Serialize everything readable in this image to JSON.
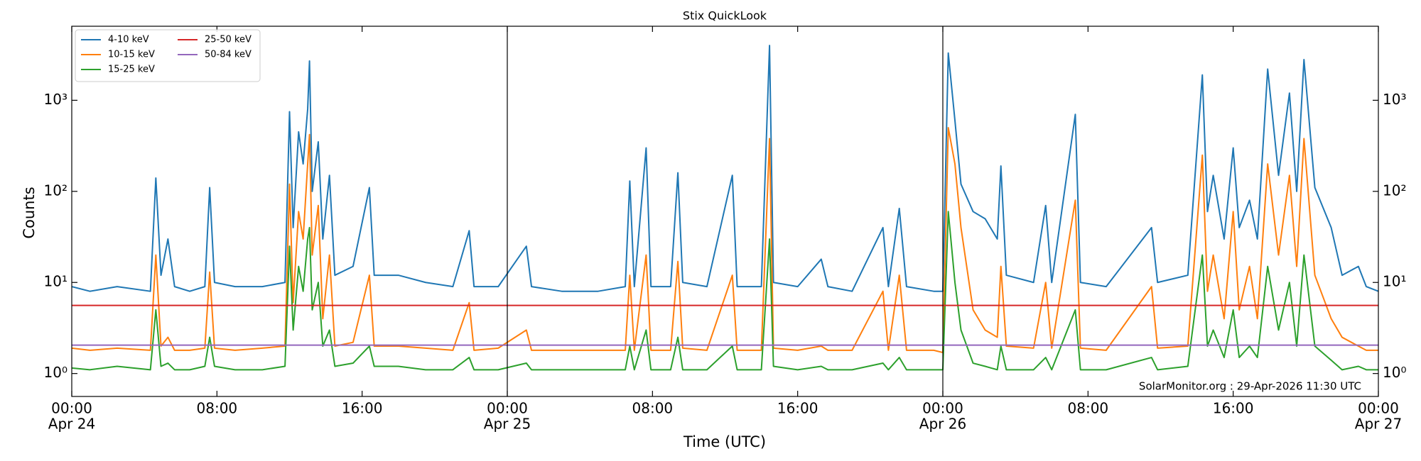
{
  "chart_data": {
    "type": "line",
    "title": "Stix QuickLook",
    "x_label": "Time (UTC)",
    "y_label": "Counts",
    "annotation": "SolarMonitor.org : 29-Apr-2026 11:30 UTC",
    "yscale": "log",
    "legend": "upper left",
    "xlim": [
      "Apr 24 00:00",
      "Apr 27 00:00"
    ],
    "xticks": [
      {
        "value": "Apr 24 00:00",
        "label": [
          "00:00",
          "Apr 24"
        ]
      },
      {
        "value": "Apr 24 08:00",
        "label": "08:00"
      },
      {
        "value": "Apr 24 16:00",
        "label": "16:00"
      },
      {
        "value": "Apr 25 00:00",
        "label": [
          "00:00",
          "Apr 25"
        ]
      },
      {
        "value": "Apr 25 08:00",
        "label": "08:00"
      },
      {
        "value": "Apr 25 16:00",
        "label": "16:00"
      },
      {
        "value": "Apr 26 00:00",
        "label": [
          "00:00",
          "Apr 26"
        ]
      },
      {
        "value": "Apr 26 08:00",
        "label": "08:00"
      },
      {
        "value": "Apr 26 16:00",
        "label": "16:00"
      },
      {
        "value": "Apr 27 00:00",
        "label": [
          "00:00",
          "Apr 27"
        ]
      }
    ],
    "ylim": [
      0.56,
      6500
    ],
    "yticks": [
      {
        "value": 1,
        "label": "10⁰"
      },
      {
        "value": 10,
        "label": "10¹"
      },
      {
        "value": 100,
        "label": "10²"
      },
      {
        "value": 1000,
        "label": "10³"
      }
    ],
    "x": [
      "Apr 24 00:00",
      "Apr 24 01:00",
      "Apr 24 02:30",
      "Apr 24 04:20",
      "Apr 24 04:38",
      "Apr 24 04:55",
      "Apr 24 05:18",
      "Apr 24 05:40",
      "Apr 24 06:30",
      "Apr 24 07:20",
      "Apr 24 07:36",
      "Apr 24 07:52",
      "Apr 24 09:00",
      "Apr 24 10:30",
      "Apr 24 11:45",
      "Apr 24 12:00",
      "Apr 24 12:12",
      "Apr 24 12:30",
      "Apr 24 12:45",
      "Apr 24 13:00",
      "Apr 24 13:06",
      "Apr 24 13:15",
      "Apr 24 13:35",
      "Apr 24 13:50",
      "Apr 24 14:12",
      "Apr 24 14:30",
      "Apr 24 15:30",
      "Apr 24 16:24",
      "Apr 24 16:40",
      "Apr 24 18:00",
      "Apr 24 19:30",
      "Apr 24 21:00",
      "Apr 24 21:54",
      "Apr 24 22:10",
      "Apr 24 23:30",
      "Apr 25 01:03",
      "Apr 25 01:20",
      "Apr 25 03:00",
      "Apr 25 05:00",
      "Apr 25 06:30",
      "Apr 25 06:45",
      "Apr 25 07:00",
      "Apr 25 07:39",
      "Apr 25 07:55",
      "Apr 25 09:00",
      "Apr 25 09:24",
      "Apr 25 09:40",
      "Apr 25 11:00",
      "Apr 25 12:24",
      "Apr 25 12:40",
      "Apr 25 14:00",
      "Apr 25 14:27",
      "Apr 25 14:40",
      "Apr 25 16:00",
      "Apr 25 17:18",
      "Apr 25 17:40",
      "Apr 25 19:00",
      "Apr 25 20:42",
      "Apr 25 21:00",
      "Apr 25 21:36",
      "Apr 25 22:00",
      "Apr 25 23:30",
      "Apr 26 00:00",
      "Apr 26 00:18",
      "Apr 26 00:40",
      "Apr 26 01:00",
      "Apr 26 01:40",
      "Apr 26 02:20",
      "Apr 26 03:00",
      "Apr 26 03:12",
      "Apr 26 03:30",
      "Apr 26 05:00",
      "Apr 26 05:40",
      "Apr 26 06:00",
      "Apr 26 07:18",
      "Apr 26 07:35",
      "Apr 26 09:00",
      "Apr 26 11:30",
      "Apr 26 11:50",
      "Apr 26 13:30",
      "Apr 26 14:18",
      "Apr 26 14:35",
      "Apr 26 14:54",
      "Apr 26 15:30",
      "Apr 26 16:00",
      "Apr 26 16:20",
      "Apr 26 16:54",
      "Apr 26 17:20",
      "Apr 26 17:54",
      "Apr 26 18:30",
      "Apr 26 19:06",
      "Apr 26 19:30",
      "Apr 26 19:54",
      "Apr 26 20:30",
      "Apr 26 21:24",
      "Apr 26 22:00",
      "Apr 26 22:54",
      "Apr 26 23:20",
      "Apr 27 00:00"
    ],
    "series": [
      {
        "name": "4-10 keV",
        "color": "#1f77b4",
        "values": [
          9,
          8,
          9,
          8,
          140,
          12,
          30,
          9,
          8,
          9,
          110,
          10,
          9,
          9,
          10,
          750,
          40,
          450,
          200,
          800,
          2700,
          100,
          350,
          30,
          150,
          12,
          15,
          110,
          12,
          12,
          10,
          9,
          37,
          9,
          9,
          25,
          9,
          8,
          8,
          9,
          130,
          9,
          300,
          9,
          9,
          160,
          10,
          9,
          150,
          9,
          9,
          4000,
          10,
          9,
          18,
          9,
          8,
          40,
          9,
          65,
          9,
          8,
          8,
          3300,
          600,
          120,
          60,
          50,
          30,
          190,
          12,
          10,
          70,
          10,
          700,
          10,
          9,
          40,
          10,
          12,
          1900,
          60,
          150,
          30,
          300,
          40,
          80,
          30,
          2200,
          150,
          1200,
          100,
          2800,
          110,
          40,
          12,
          15,
          9,
          8
        ]
      },
      {
        "name": "10-15 keV",
        "color": "#ff7f0e",
        "values": [
          1.9,
          1.8,
          1.9,
          1.8,
          20,
          2,
          2.5,
          1.8,
          1.8,
          1.9,
          13,
          1.9,
          1.8,
          1.9,
          2,
          120,
          6,
          60,
          30,
          200,
          420,
          20,
          70,
          4,
          20,
          2,
          2.2,
          12,
          2,
          2,
          1.9,
          1.8,
          6,
          1.8,
          1.9,
          3,
          1.8,
          1.8,
          1.8,
          1.8,
          12,
          1.8,
          20,
          1.8,
          1.8,
          17,
          1.9,
          1.8,
          12,
          1.8,
          1.8,
          380,
          1.9,
          1.8,
          2,
          1.8,
          1.8,
          8,
          1.8,
          12,
          1.8,
          1.8,
          1.7,
          500,
          200,
          40,
          5,
          3,
          2.5,
          15,
          2,
          1.9,
          10,
          1.9,
          80,
          1.9,
          1.8,
          9,
          1.9,
          2,
          250,
          8,
          20,
          4,
          60,
          5,
          15,
          4,
          200,
          20,
          150,
          15,
          380,
          12,
          4,
          2.5,
          2,
          1.8,
          1.8
        ]
      },
      {
        "name": "15-25 keV",
        "color": "#2ca02c",
        "values": [
          1.15,
          1.1,
          1.2,
          1.1,
          5,
          1.2,
          1.3,
          1.1,
          1.1,
          1.2,
          2.5,
          1.2,
          1.1,
          1.1,
          1.2,
          25,
          3,
          15,
          8,
          30,
          40,
          5,
          10,
          2,
          3,
          1.2,
          1.3,
          2,
          1.2,
          1.2,
          1.1,
          1.1,
          1.5,
          1.1,
          1.1,
          1.3,
          1.1,
          1.1,
          1.1,
          1.1,
          2,
          1.1,
          3,
          1.1,
          1.1,
          2.5,
          1.1,
          1.1,
          2,
          1.1,
          1.1,
          30,
          1.2,
          1.1,
          1.2,
          1.1,
          1.1,
          1.3,
          1.1,
          1.5,
          1.1,
          1.1,
          1.1,
          60,
          10,
          3,
          1.3,
          1.2,
          1.1,
          2,
          1.1,
          1.1,
          1.5,
          1.1,
          5,
          1.1,
          1.1,
          1.5,
          1.1,
          1.2,
          20,
          2,
          3,
          1.5,
          5,
          1.5,
          2,
          1.5,
          15,
          3,
          10,
          2,
          20,
          2,
          1.4,
          1.1,
          1.2,
          1.1,
          1.1
        ]
      },
      {
        "name": "25-50 keV",
        "color": "#d62728",
        "values": [
          5.6,
          5.6,
          5.6,
          5.6,
          5.6,
          5.6,
          5.6,
          5.6,
          5.6,
          5.6,
          5.6,
          5.6,
          5.6,
          5.6,
          5.6,
          5.6,
          5.6,
          5.6,
          5.6,
          5.6,
          5.6,
          5.6,
          5.6,
          5.6,
          5.6,
          5.6,
          5.6,
          5.6,
          5.6,
          5.6,
          5.6,
          5.6,
          5.6,
          5.6,
          5.6,
          5.6,
          5.6,
          5.6,
          5.6,
          5.6,
          5.6,
          5.6,
          5.6,
          5.6,
          5.6,
          5.6,
          5.6,
          5.6,
          5.6,
          5.6,
          5.6,
          5.6,
          5.6,
          5.6,
          5.6,
          5.6,
          5.6,
          5.6,
          5.6,
          5.6,
          5.6,
          5.6,
          5.6,
          5.6,
          5.6,
          5.6,
          5.6,
          5.6,
          5.6,
          5.6,
          5.6,
          5.6,
          5.6,
          5.6,
          5.6,
          5.6,
          5.6,
          5.6,
          5.6,
          5.6,
          5.6,
          5.6,
          5.6,
          5.6,
          5.6,
          5.6,
          5.6,
          5.6,
          5.6,
          5.6,
          5.6,
          5.6,
          5.6,
          5.6,
          5.6,
          5.6,
          5.6,
          5.6,
          5.6
        ]
      },
      {
        "name": "50-84 keV",
        "color": "#9467bd",
        "values": [
          2.05,
          2.05,
          2.05,
          2.05,
          2.05,
          2.05,
          2.05,
          2.05,
          2.05,
          2.05,
          2.05,
          2.05,
          2.05,
          2.05,
          2.05,
          2.05,
          2.05,
          2.05,
          2.05,
          2.05,
          2.05,
          2.05,
          2.05,
          2.05,
          2.05,
          2.05,
          2.05,
          2.05,
          2.05,
          2.05,
          2.05,
          2.05,
          2.05,
          2.05,
          2.05,
          2.05,
          2.05,
          2.05,
          2.05,
          2.05,
          2.05,
          2.05,
          2.05,
          2.05,
          2.05,
          2.05,
          2.05,
          2.05,
          2.05,
          2.05,
          2.05,
          2.05,
          2.05,
          2.05,
          2.05,
          2.05,
          2.05,
          2.05,
          2.05,
          2.05,
          2.05,
          2.05,
          2.05,
          2.05,
          2.05,
          2.05,
          2.05,
          2.05,
          2.05,
          2.05,
          2.05,
          2.05,
          2.05,
          2.05,
          2.05,
          2.05,
          2.05,
          2.05,
          2.05,
          2.05,
          2.05,
          2.05,
          2.05,
          2.05,
          2.05,
          2.05,
          2.05,
          2.05,
          2.05,
          2.05,
          2.05,
          2.05,
          2.05,
          2.05,
          2.05,
          2.05,
          2.05,
          2.05,
          2.05
        ]
      }
    ]
  }
}
